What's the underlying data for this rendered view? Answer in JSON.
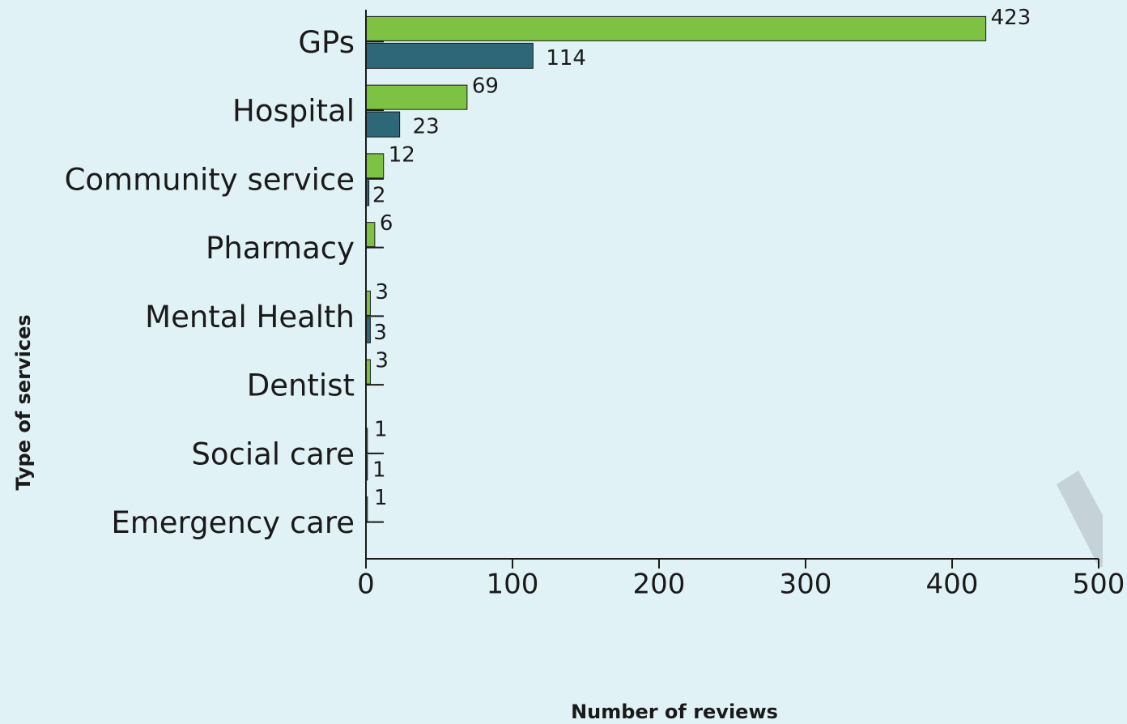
{
  "chart_data": {
    "type": "hbar",
    "categories": [
      "GPs",
      "Hospital",
      "Community service",
      "Pharmacy",
      "Mental Health",
      "Dentist",
      "Social care",
      "Emergency care"
    ],
    "series": [
      {
        "color": "#7dc242",
        "values": [
          423,
          69,
          12,
          6,
          3,
          3,
          1,
          1
        ]
      },
      {
        "color": "#2e6878",
        "values": [
          114,
          23,
          2,
          null,
          3,
          null,
          1,
          null
        ]
      }
    ],
    "xlabel": "Number of reviews",
    "ylabel": "Type of services",
    "xlim": [
      0,
      500
    ],
    "xticks": [
      0,
      100,
      200,
      300,
      400,
      500
    ]
  }
}
